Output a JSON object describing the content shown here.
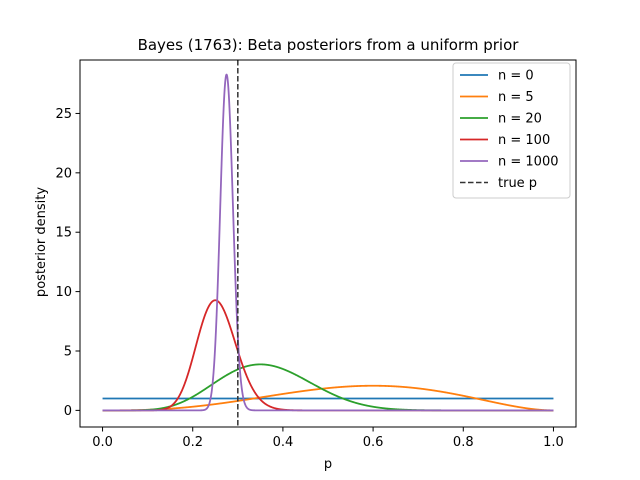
{
  "chart_data": {
    "type": "line",
    "title": "Bayes (1763): Beta posteriors from a uniform prior",
    "xlabel": "p",
    "ylabel": "posterior density",
    "xlim": [
      -0.05,
      1.05
    ],
    "ylim": [
      -1.4,
      29.5
    ],
    "xticks": [
      0.0,
      0.2,
      0.4,
      0.6,
      0.8,
      1.0
    ],
    "xtick_labels": [
      "0.0",
      "0.2",
      "0.4",
      "0.6",
      "0.8",
      "1.0"
    ],
    "yticks": [
      0,
      5,
      10,
      15,
      20,
      25
    ],
    "ytick_labels": [
      "0",
      "5",
      "10",
      "15",
      "20",
      "25"
    ],
    "grid": false,
    "legend_position": "top-right",
    "series": [
      {
        "name": "n = 0",
        "color": "#1f77b4",
        "beta": [
          1,
          1
        ]
      },
      {
        "name": "n = 5",
        "color": "#ff7f0e",
        "beta": [
          4,
          3
        ]
      },
      {
        "name": "n = 20",
        "color": "#2ca02c",
        "beta": [
          8,
          14
        ]
      },
      {
        "name": "n = 100",
        "color": "#d62728",
        "beta": [
          26,
          76
        ]
      },
      {
        "name": "n = 1000",
        "color": "#9467bd",
        "beta": [
          276,
          726
        ]
      }
    ],
    "reference_line": {
      "name": "true p",
      "x": 0.3,
      "color": "#333333",
      "style": "dashed"
    }
  }
}
